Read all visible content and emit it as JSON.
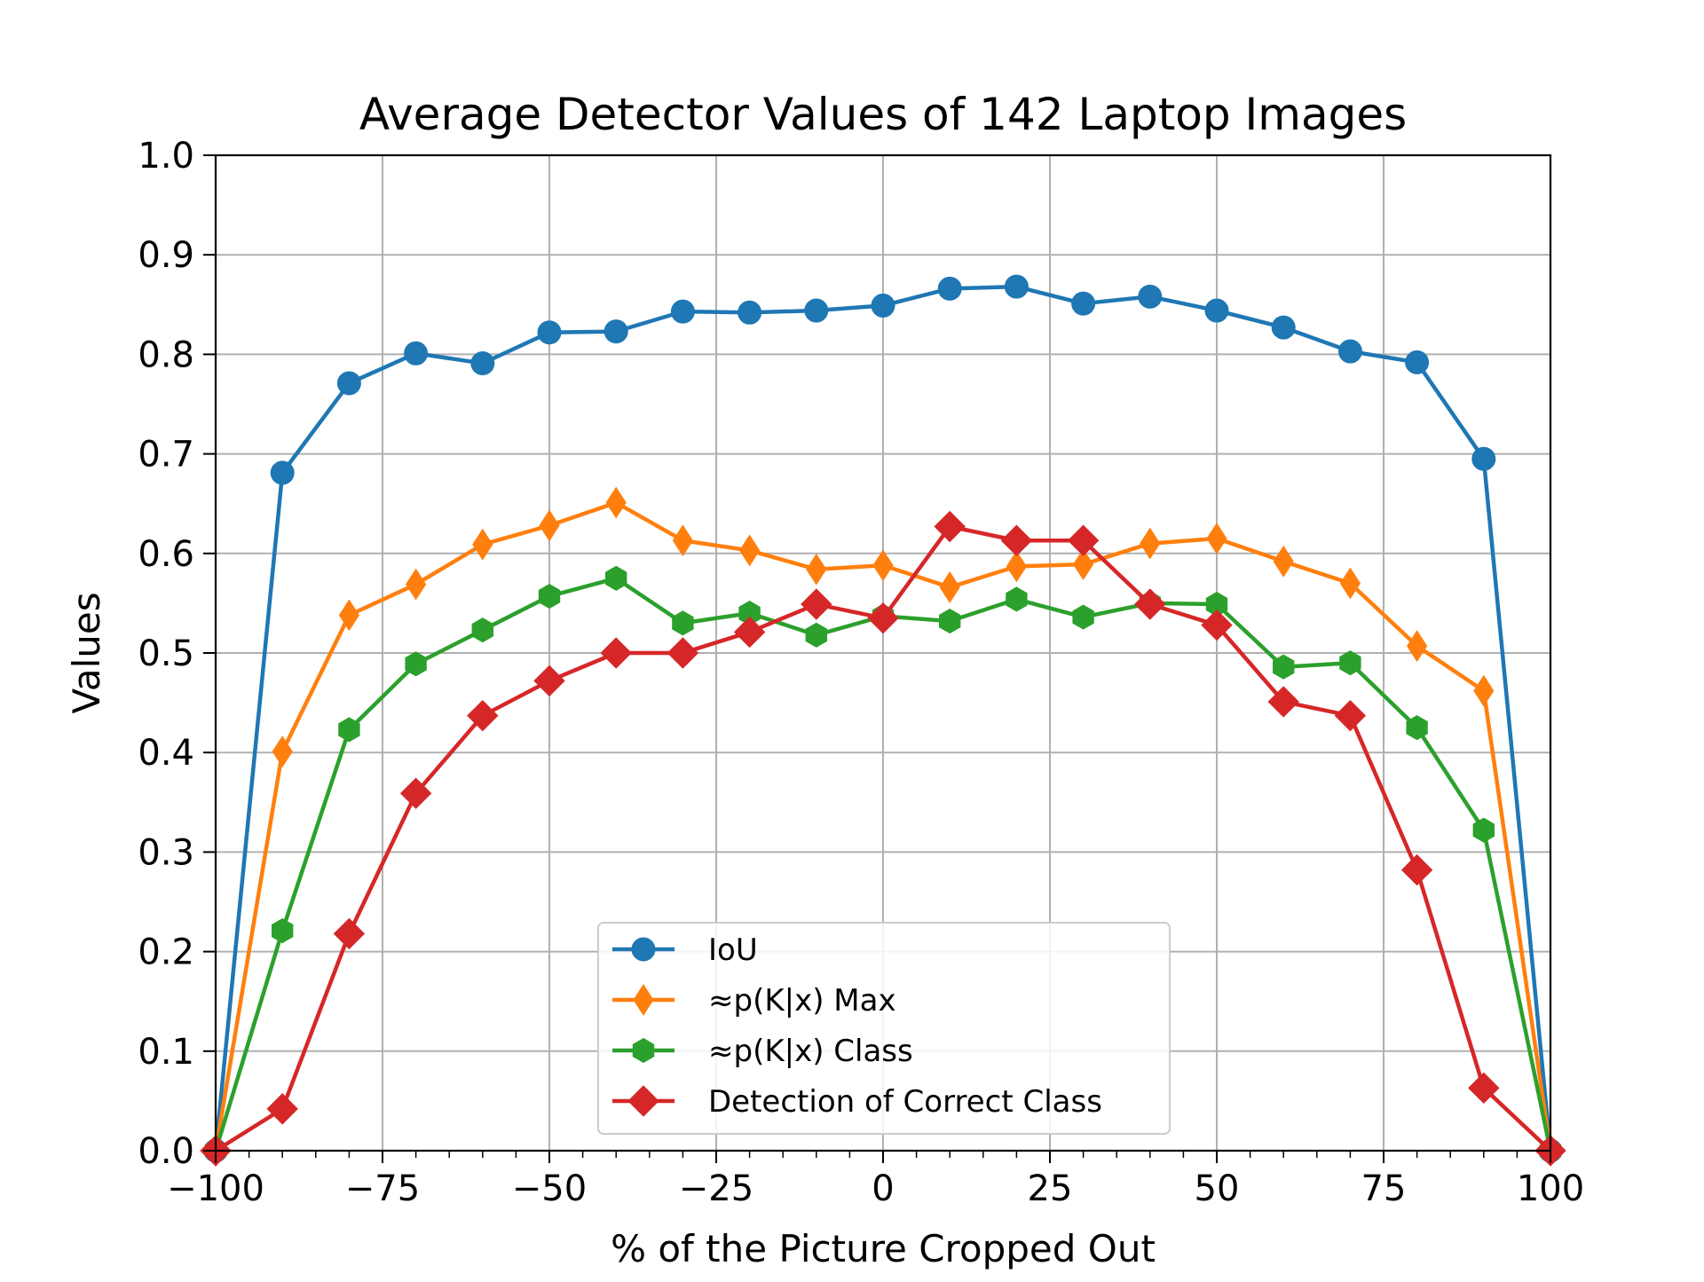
{
  "chart_data": {
    "type": "line",
    "title": "Average Detector Values of 142 Laptop Images",
    "xlabel": "% of the Picture Cropped Out",
    "ylabel": "Values",
    "xlim": [
      -100,
      100
    ],
    "ylim": [
      0.0,
      1.0
    ],
    "xticks": [
      -100,
      -75,
      -50,
      -25,
      0,
      25,
      50,
      75,
      100
    ],
    "xtick_labels": [
      "−100",
      "−75",
      "−50",
      "−25",
      "0",
      "25",
      "50",
      "75",
      "100"
    ],
    "yticks": [
      0.0,
      0.1,
      0.2,
      0.3,
      0.4,
      0.5,
      0.6,
      0.7,
      0.8,
      0.9,
      1.0
    ],
    "ytick_labels": [
      "0.0",
      "0.1",
      "0.2",
      "0.3",
      "0.4",
      "0.5",
      "0.6",
      "0.7",
      "0.8",
      "0.9",
      "1.0"
    ],
    "grid": true,
    "legend_position": "bottom-center",
    "x": [
      -100,
      -90,
      -80,
      -70,
      -60,
      -50,
      -40,
      -30,
      -20,
      -10,
      0,
      10,
      20,
      30,
      40,
      50,
      60,
      70,
      80,
      90,
      100
    ],
    "series": [
      {
        "name": "IoU",
        "color": "#1f77b4",
        "marker": "circle",
        "values": [
          0.0,
          0.681,
          0.771,
          0.801,
          0.791,
          0.822,
          0.823,
          0.843,
          0.842,
          0.844,
          0.849,
          0.866,
          0.868,
          0.851,
          0.858,
          0.844,
          0.827,
          0.803,
          0.792,
          0.695,
          0.0
        ]
      },
      {
        "name": "≈p(K|x) Max",
        "color": "#ff7f0e",
        "marker": "thin-diamond",
        "values": [
          0.0,
          0.401,
          0.538,
          0.569,
          0.609,
          0.628,
          0.651,
          0.613,
          0.603,
          0.584,
          0.588,
          0.566,
          0.587,
          0.589,
          0.61,
          0.615,
          0.592,
          0.57,
          0.507,
          0.462,
          0.0
        ]
      },
      {
        "name": "≈p(K|x) Class",
        "color": "#2ca02c",
        "marker": "hexagon",
        "values": [
          0.0,
          0.221,
          0.423,
          0.489,
          0.523,
          0.557,
          0.575,
          0.53,
          0.54,
          0.518,
          0.537,
          0.532,
          0.554,
          0.536,
          0.55,
          0.549,
          0.486,
          0.49,
          0.425,
          0.322,
          0.0
        ]
      },
      {
        "name": "Detection of Correct Class",
        "color": "#d62728",
        "marker": "diamond",
        "values": [
          0.0,
          0.042,
          0.218,
          0.359,
          0.437,
          0.472,
          0.5,
          0.5,
          0.521,
          0.549,
          0.535,
          0.627,
          0.613,
          0.613,
          0.549,
          0.528,
          0.451,
          0.437,
          0.282,
          0.063,
          0.0
        ]
      }
    ]
  }
}
